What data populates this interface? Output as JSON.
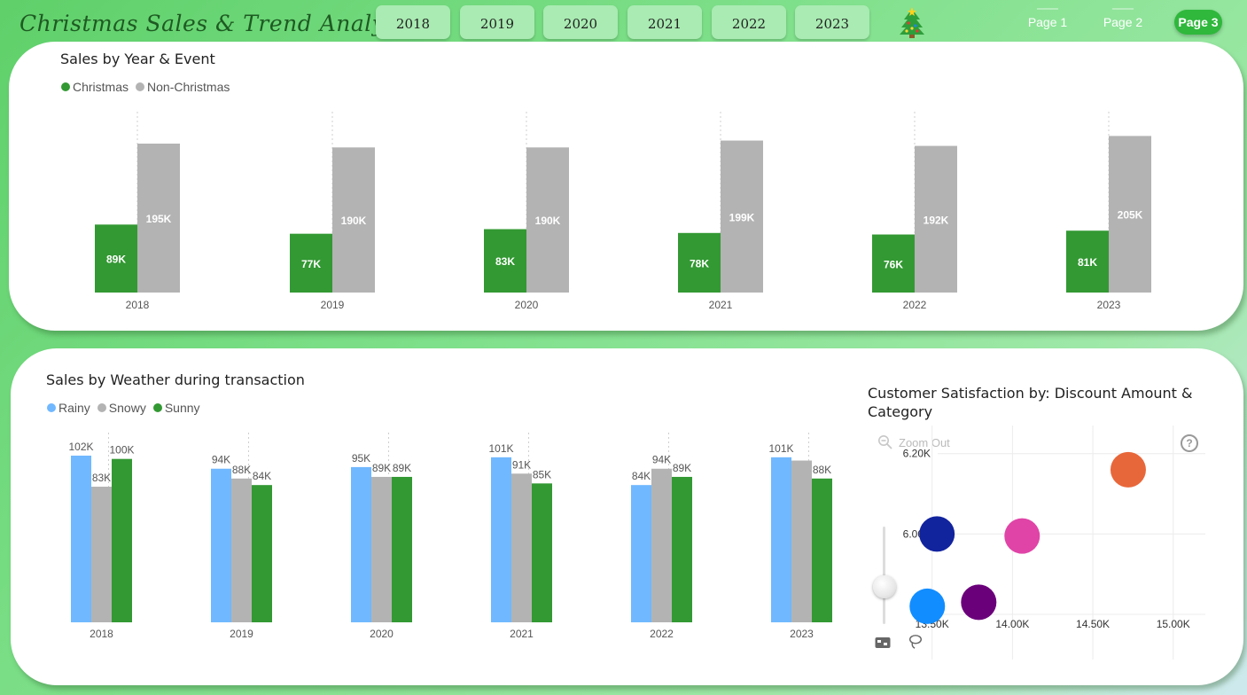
{
  "header": {
    "title": "Christmas Sales & Trend Analysis",
    "year_buttons": [
      "2018",
      "2019",
      "2020",
      "2021",
      "2022",
      "2023"
    ],
    "pages": [
      "Page 1",
      "Page 2",
      "Page 3"
    ],
    "active_page": "Page 3"
  },
  "colors": {
    "christmas": "#339933",
    "non_christmas": "#b3b3b3",
    "rainy": "#70b8ff",
    "snowy": "#b3b3b3",
    "sunny": "#339933"
  },
  "chart_data": [
    {
      "type": "bar",
      "title": "Sales by Year & Event",
      "categories": [
        "2018",
        "2019",
        "2020",
        "2021",
        "2022",
        "2023"
      ],
      "series": [
        {
          "name": "Christmas",
          "values": [
            89,
            77,
            83,
            78,
            76,
            81
          ],
          "labels": [
            "89K",
            "77K",
            "83K",
            "78K",
            "76K",
            "81K"
          ]
        },
        {
          "name": "Non-Christmas",
          "values": [
            195,
            190,
            190,
            199,
            192,
            205
          ],
          "labels": [
            "195K",
            "190K",
            "190K",
            "199K",
            "192K",
            "205K"
          ]
        }
      ],
      "unit": "K",
      "legend_position": "top-left",
      "grid": false
    },
    {
      "type": "bar",
      "title": "Sales by Weather during transaction",
      "categories": [
        "2018",
        "2019",
        "2020",
        "2021",
        "2022",
        "2023"
      ],
      "series": [
        {
          "name": "Rainy",
          "values": [
            102,
            94,
            95,
            101,
            84,
            101
          ],
          "labels": [
            "102K",
            "94K",
            "95K",
            "101K",
            "84K",
            "101K"
          ]
        },
        {
          "name": "Snowy",
          "values": [
            83,
            88,
            89,
            91,
            94,
            99
          ],
          "labels": [
            "83K",
            "88K",
            "89K",
            "91K",
            "94K",
            ""
          ]
        },
        {
          "name": "Sunny",
          "values": [
            100,
            84,
            89,
            85,
            89,
            88
          ],
          "labels": [
            "100K",
            "84K",
            "89K",
            "85K",
            "89K",
            "88K"
          ]
        }
      ],
      "unit": "K",
      "legend_position": "top-left",
      "grid": false
    },
    {
      "type": "scatter",
      "title": "Customer Satisfaction by: Discount Amount & Category",
      "x_ticks": [
        "13.50K",
        "14.00K",
        "14.50K",
        "15.00K"
      ],
      "y_ticks": [
        "6.20K",
        "6.00K"
      ],
      "xlim": [
        13.27,
        15.2
      ],
      "ylim": [
        5.8,
        6.27
      ],
      "points": [
        {
          "x": 14.72,
          "y": 6.16,
          "color": "#e8673a"
        },
        {
          "x": 13.53,
          "y": 6.0,
          "color": "#12239e"
        },
        {
          "x": 14.06,
          "y": 5.995,
          "color": "#e044a7"
        },
        {
          "x": 13.47,
          "y": 5.82,
          "color": "#118dff"
        },
        {
          "x": 13.79,
          "y": 5.83,
          "color": "#6b007b"
        }
      ],
      "zoom_label": "Zoom Out",
      "help_symbol": "?",
      "grid": true
    }
  ]
}
